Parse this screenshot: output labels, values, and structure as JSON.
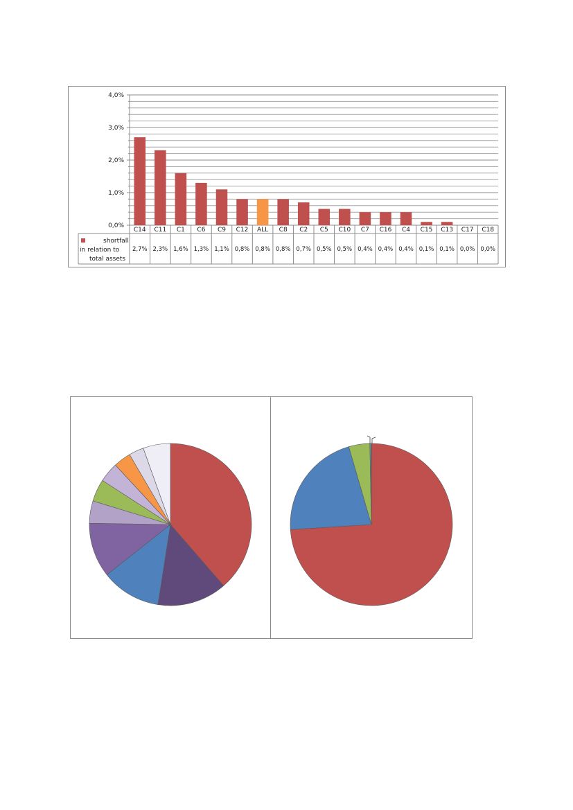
{
  "chart_data": [
    {
      "type": "bar",
      "categories": [
        "C14",
        "C11",
        "C1",
        "C6",
        "C9",
        "C12",
        "ALL",
        "C8",
        "C2",
        "C5",
        "C10",
        "C7",
        "C16",
        "C4",
        "C15",
        "C13",
        "C17",
        "C18"
      ],
      "values": [
        2.7,
        2.3,
        1.6,
        1.3,
        1.1,
        0.8,
        0.8,
        0.8,
        0.7,
        0.5,
        0.5,
        0.4,
        0.4,
        0.4,
        0.1,
        0.1,
        0.0,
        0.0
      ],
      "value_labels": [
        "2,7%",
        "2,3%",
        "1,6%",
        "1,3%",
        "1,1%",
        "0,8%",
        "0,8%",
        "0,8%",
        "0,7%",
        "0,5%",
        "0,5%",
        "0,4%",
        "0,4%",
        "0,4%",
        "0,1%",
        "0,1%",
        "0,0%",
        "0,0%"
      ],
      "y_ticks": [
        "0,0%",
        "1,0%",
        "2,0%",
        "3,0%",
        "4,0%"
      ],
      "ylim": [
        0,
        4.0
      ],
      "legend": [
        "shortfall",
        "in relation to",
        "total assets"
      ],
      "series_color": "#c0504d",
      "highlight_color": "#f79646",
      "highlight_category": "ALL",
      "grid": true
    },
    {
      "type": "pie",
      "values": [
        39,
        14,
        12,
        11,
        4.5,
        4.5,
        4,
        3.5,
        3,
        5.5
      ],
      "colors": [
        "#c0504d",
        "#604a7b",
        "#4f81bd",
        "#8064a2",
        "#b2a2c7",
        "#9bbb59",
        "#c3b3d6",
        "#f79646",
        "#ddd8e8",
        "#efedf5"
      ]
    },
    {
      "type": "pie",
      "values": [
        74,
        21.5,
        4.2,
        0.2,
        0.1
      ],
      "colors": [
        "#c0504d",
        "#4f81bd",
        "#9bbb59",
        "#4bacc6",
        "#8064a2"
      ]
    }
  ]
}
